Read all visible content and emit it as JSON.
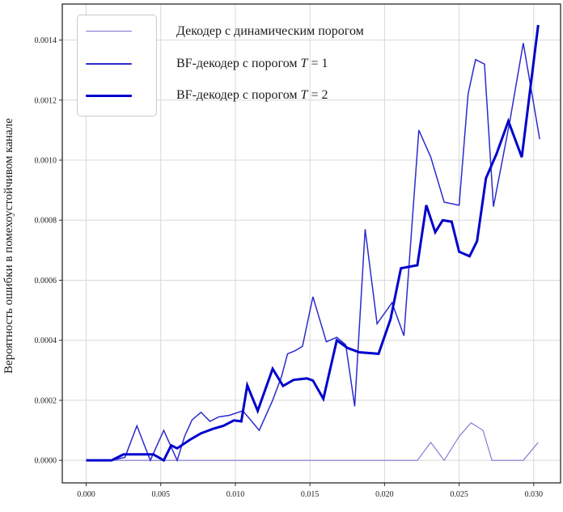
{
  "chart_data": {
    "type": "line",
    "title": "",
    "xlabel": "",
    "ylabel": "Вероятность ошибки в помехоустойчивом канале",
    "xlim": [
      -0.0016,
      0.0318
    ],
    "ylim": [
      -7.5e-05,
      0.00152
    ],
    "grid": true,
    "grid_color": "#d8d8d8",
    "spine_color": "#2a2a2a",
    "legend_position": "upper-left",
    "x_ticks": [
      0.0,
      0.005,
      0.01,
      0.015,
      0.02,
      0.025,
      0.03
    ],
    "x_tick_labels": [
      "0.000",
      "0.005",
      "0.010",
      "0.015",
      "0.020",
      "0.025",
      "0.030"
    ],
    "y_ticks": [
      0.0,
      0.0002,
      0.0004,
      0.0006,
      0.0008,
      0.001,
      0.0012,
      0.0014
    ],
    "y_tick_labels": [
      "0.0000",
      "0.0002",
      "0.0004",
      "0.0006",
      "0.0008",
      "0.0010",
      "0.0012",
      "0.0014"
    ],
    "series": [
      {
        "key": "dynamic-threshold-decoder",
        "label_before": "Декодер с динамическим порогом",
        "label_math": "",
        "label_after": "",
        "color": "#7d74cf",
        "line_width": 1.1,
        "points": [
          [
            0.0,
            0
          ],
          [
            0.005,
            0
          ],
          [
            0.01,
            0
          ],
          [
            0.015,
            0
          ],
          [
            0.02,
            0
          ],
          [
            0.0222,
            0
          ],
          [
            0.0231,
            6e-05
          ],
          [
            0.024,
            0
          ],
          [
            0.025,
            8e-05
          ],
          [
            0.0258,
            0.000125
          ],
          [
            0.0266,
            0.0001
          ],
          [
            0.0272,
            0
          ],
          [
            0.0285,
            0
          ],
          [
            0.0293,
            0
          ],
          [
            0.0303,
            6e-05
          ]
        ]
      },
      {
        "key": "bf-decoder-t1",
        "label_before": "BF-декодер с порогом ",
        "label_math": "T",
        "label_after": " = 1",
        "color": "#2b2bcd",
        "line_width": 1.5,
        "points": [
          [
            0.0,
            0
          ],
          [
            0.0009,
            0
          ],
          [
            0.0017,
            0
          ],
          [
            0.0026,
            1e-05
          ],
          [
            0.0034,
            0.000115
          ],
          [
            0.0043,
            0
          ],
          [
            0.0052,
            0.0001
          ],
          [
            0.0061,
            0
          ],
          [
            0.0066,
            8e-05
          ],
          [
            0.0071,
            0.000135
          ],
          [
            0.0077,
            0.00016
          ],
          [
            0.0083,
            0.00013
          ],
          [
            0.0089,
            0.000145
          ],
          [
            0.0096,
            0.00015
          ],
          [
            0.0105,
            0.000165
          ],
          [
            0.0111,
            0.00013
          ],
          [
            0.0116,
            0.0001
          ],
          [
            0.0125,
            0.0002
          ],
          [
            0.0131,
            0.00028
          ],
          [
            0.0135,
            0.000355
          ],
          [
            0.014,
            0.000365
          ],
          [
            0.0145,
            0.00038
          ],
          [
            0.0152,
            0.000545
          ],
          [
            0.0161,
            0.000395
          ],
          [
            0.0168,
            0.00041
          ],
          [
            0.0174,
            0.000385
          ],
          [
            0.018,
            0.00018
          ],
          [
            0.0187,
            0.00077
          ],
          [
            0.0195,
            0.000455
          ],
          [
            0.0205,
            0.000525
          ],
          [
            0.0213,
            0.000415
          ],
          [
            0.0223,
            0.0011
          ],
          [
            0.0231,
            0.00101
          ],
          [
            0.024,
            0.00086
          ],
          [
            0.025,
            0.00085
          ],
          [
            0.0256,
            0.00122
          ],
          [
            0.0261,
            0.001335
          ],
          [
            0.0267,
            0.00132
          ],
          [
            0.0273,
            0.000845
          ],
          [
            0.0284,
            0.00113
          ],
          [
            0.0293,
            0.00139
          ],
          [
            0.0304,
            0.00107
          ]
        ]
      },
      {
        "key": "bf-decoder-t2",
        "label_before": "BF-декодер с порогом ",
        "label_math": "T",
        "label_after": " = 2",
        "color": "#0000cd",
        "line_width": 3,
        "points": [
          [
            0.0,
            0
          ],
          [
            0.0009,
            0
          ],
          [
            0.0017,
            0
          ],
          [
            0.0025,
            2e-05
          ],
          [
            0.0034,
            2e-05
          ],
          [
            0.0045,
            2e-05
          ],
          [
            0.0052,
            0
          ],
          [
            0.0057,
            5e-05
          ],
          [
            0.0061,
            4e-05
          ],
          [
            0.007,
            7e-05
          ],
          [
            0.0077,
            9e-05
          ],
          [
            0.0085,
            0.000105
          ],
          [
            0.0092,
            0.000115
          ],
          [
            0.0099,
            0.000133
          ],
          [
            0.0104,
            0.00013
          ],
          [
            0.0108,
            0.00025
          ],
          [
            0.0115,
            0.000165
          ],
          [
            0.0125,
            0.000305
          ],
          [
            0.0132,
            0.000248
          ],
          [
            0.0139,
            0.000268
          ],
          [
            0.0148,
            0.000273
          ],
          [
            0.0152,
            0.000266
          ],
          [
            0.0159,
            0.000205
          ],
          [
            0.0168,
            0.0004
          ],
          [
            0.0175,
            0.000375
          ],
          [
            0.0183,
            0.00036
          ],
          [
            0.0196,
            0.000355
          ],
          [
            0.0204,
            0.00047
          ],
          [
            0.0211,
            0.00064
          ],
          [
            0.0222,
            0.00065
          ],
          [
            0.0228,
            0.00085
          ],
          [
            0.0234,
            0.00076
          ],
          [
            0.0239,
            0.0008
          ],
          [
            0.0245,
            0.000795
          ],
          [
            0.025,
            0.000695
          ],
          [
            0.0257,
            0.00068
          ],
          [
            0.0262,
            0.00073
          ],
          [
            0.0268,
            0.00094
          ],
          [
            0.0275,
            0.00102
          ],
          [
            0.0283,
            0.00113
          ],
          [
            0.0292,
            0.00101
          ],
          [
            0.0303,
            0.00145
          ]
        ]
      }
    ]
  }
}
